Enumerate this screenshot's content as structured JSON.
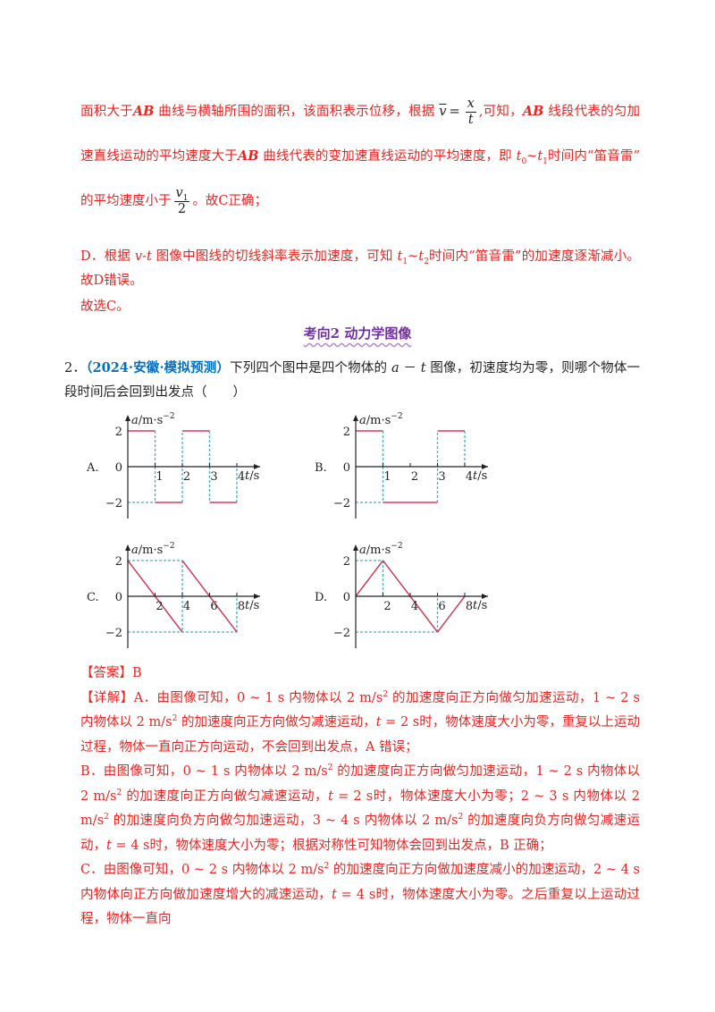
{
  "explanation": {
    "p1": [
      "面积大于",
      "AB",
      " 曲线与横轴所围的面积，该面积表示位移，根据",
      "v",
      "=",
      "x",
      "t",
      ",可知，",
      "AB",
      " 线段代表的匀加速直线运动的平均速度大于",
      "AB",
      " 曲线代表的变加速直线运动的平均速度，即 ",
      "t",
      "0",
      "~",
      "t",
      "1",
      "时间内“笛音雷”的平均速度小于",
      "v",
      "1",
      "2",
      "。故C正确；"
    ],
    "p2": [
      "D．根据 ",
      "v-t",
      " 图像中图线的切线斜率表示加速度，可知 ",
      "t",
      "1",
      "~",
      "t",
      "2",
      "时间内“笛音雷”的加速度逐渐减小。故D错误。"
    ],
    "p3": "故选C。"
  },
  "section_heading": "考向2  动力学图像",
  "question": {
    "number": "2．",
    "source": "（2024·安徽·模拟预测）",
    "stem": [
      "下列四个图中是四个物体的 ",
      "a",
      " － ",
      "t",
      " 图像，初速度均为零，则哪个物体一段时间后会回到出发点（　　）"
    ]
  },
  "graphs": [
    {
      "option": "A.",
      "y_label": [
        "a",
        "/m·s",
        "−2"
      ],
      "x_label": [
        "t",
        "/s"
      ],
      "y_ticks": [
        "2",
        "0",
        "−2"
      ],
      "x_ticks": [
        "1",
        "2",
        "3",
        "4"
      ]
    },
    {
      "option": "B.",
      "y_label": [
        "a",
        "/m·s",
        "−2"
      ],
      "x_label": [
        "t",
        "/s"
      ],
      "y_ticks": [
        "2",
        "0",
        "−2"
      ],
      "x_ticks": [
        "1",
        "2",
        "3",
        "4"
      ]
    },
    {
      "option": "C.",
      "y_label": [
        "a",
        "/m·s",
        "−2"
      ],
      "x_label": [
        "t",
        "/s"
      ],
      "y_ticks": [
        "2",
        "0",
        "−2"
      ],
      "x_ticks": [
        "2",
        "4",
        "6",
        "8"
      ]
    },
    {
      "option": "D.",
      "y_label": [
        "a",
        "/m·s",
        "−2"
      ],
      "x_label": [
        "t",
        "/s"
      ],
      "y_ticks": [
        "2",
        "0",
        "−2"
      ],
      "x_ticks": [
        "2",
        "4",
        "6",
        "8"
      ]
    }
  ],
  "answer": {
    "label": "【答案】B",
    "a": [
      "【详解】A．由图像可知，0 ~ 1 s 内物体以 2 m/s",
      "2",
      " 的加速度向正方向做匀加速运动，1 ~ 2 s 内物体以 2 m/s",
      "2",
      " 的加速度向正方向做匀减速运动，",
      "t",
      " = 2 s时，物体速度大小为零，重复以上运动过程，物体一直向正方向运动，不会回到出发点，A 错误；"
    ],
    "b": [
      "B．由图像可知，0 ~ 1 s 内物体以 2 m/s",
      "2",
      " 的加速度向正方向做匀加速运动，1 ~ 2 s 内物体以 2 m/s",
      "2",
      " 的加速度向正方向做匀减速运动，",
      "t",
      " = 2 s时，物体速度大小为零；2 ~ 3 s 内物体以 2 m/s",
      "2",
      " 的加速度向负方向做匀加速运动，3 ~ 4 s 内物体以 2 m/s",
      "2",
      " 的加速度向负方向做匀减速运动，",
      "t",
      " = 4 s时，物体速度大小为零；根据对称性可知物体会回到出发点，B 正确；"
    ],
    "c": [
      "C．由图像可知，0 ~ 2 s 内物体以 2 m/s",
      "2",
      " 的加速度向正方向做加速度减小的加速运动，2 ~ 4 s 内物体向正方向做加速度增大的减速运动，",
      "t",
      " = 4 s时，物体速度大小为零。之后重复以上运动过程，物体一直向"
    ]
  }
}
